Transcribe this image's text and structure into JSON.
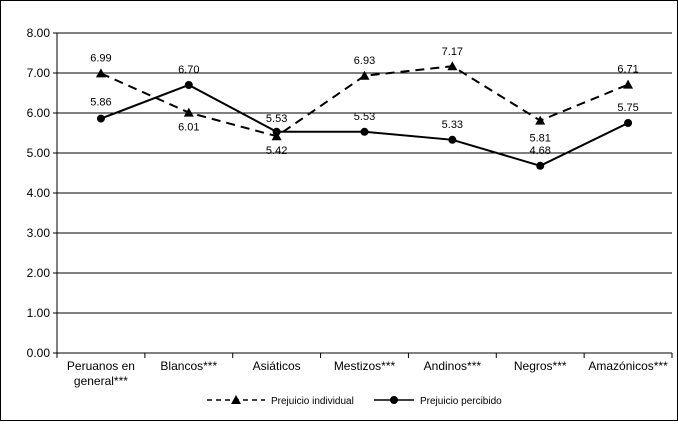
{
  "chart_data": {
    "type": "line",
    "categories": [
      [
        "Peruanos en",
        "general***"
      ],
      [
        "Blancos***"
      ],
      [
        "Asiáticos"
      ],
      [
        "Mestizos***"
      ],
      [
        "Andinos***"
      ],
      [
        "Negros***"
      ],
      [
        "Amazónicos***"
      ]
    ],
    "ylim": [
      0,
      8
    ],
    "yticks": [
      "0.00",
      "1.00",
      "2.00",
      "3.00",
      "4.00",
      "5.00",
      "6.00",
      "7.00",
      "8.00"
    ],
    "grid": true,
    "legend_position": "bottom",
    "series": [
      {
        "name": "Prejuicio individual",
        "values": [
          6.99,
          6.01,
          5.42,
          6.93,
          7.17,
          5.81,
          6.71
        ],
        "labels": [
          "6.99",
          "6.01",
          "5.42",
          "6.93",
          "7.17",
          "5.81",
          "6.71"
        ],
        "line_style": "dashed",
        "marker": "triangle",
        "color": "#000000"
      },
      {
        "name": "Prejuicio percibido",
        "values": [
          5.86,
          6.7,
          5.53,
          5.53,
          5.33,
          4.68,
          5.75
        ],
        "labels": [
          "5.86",
          "6.70",
          "5.53",
          "5.53",
          "5.33",
          "4.68",
          "5.75"
        ],
        "line_style": "solid",
        "marker": "circle",
        "color": "#000000"
      }
    ]
  }
}
